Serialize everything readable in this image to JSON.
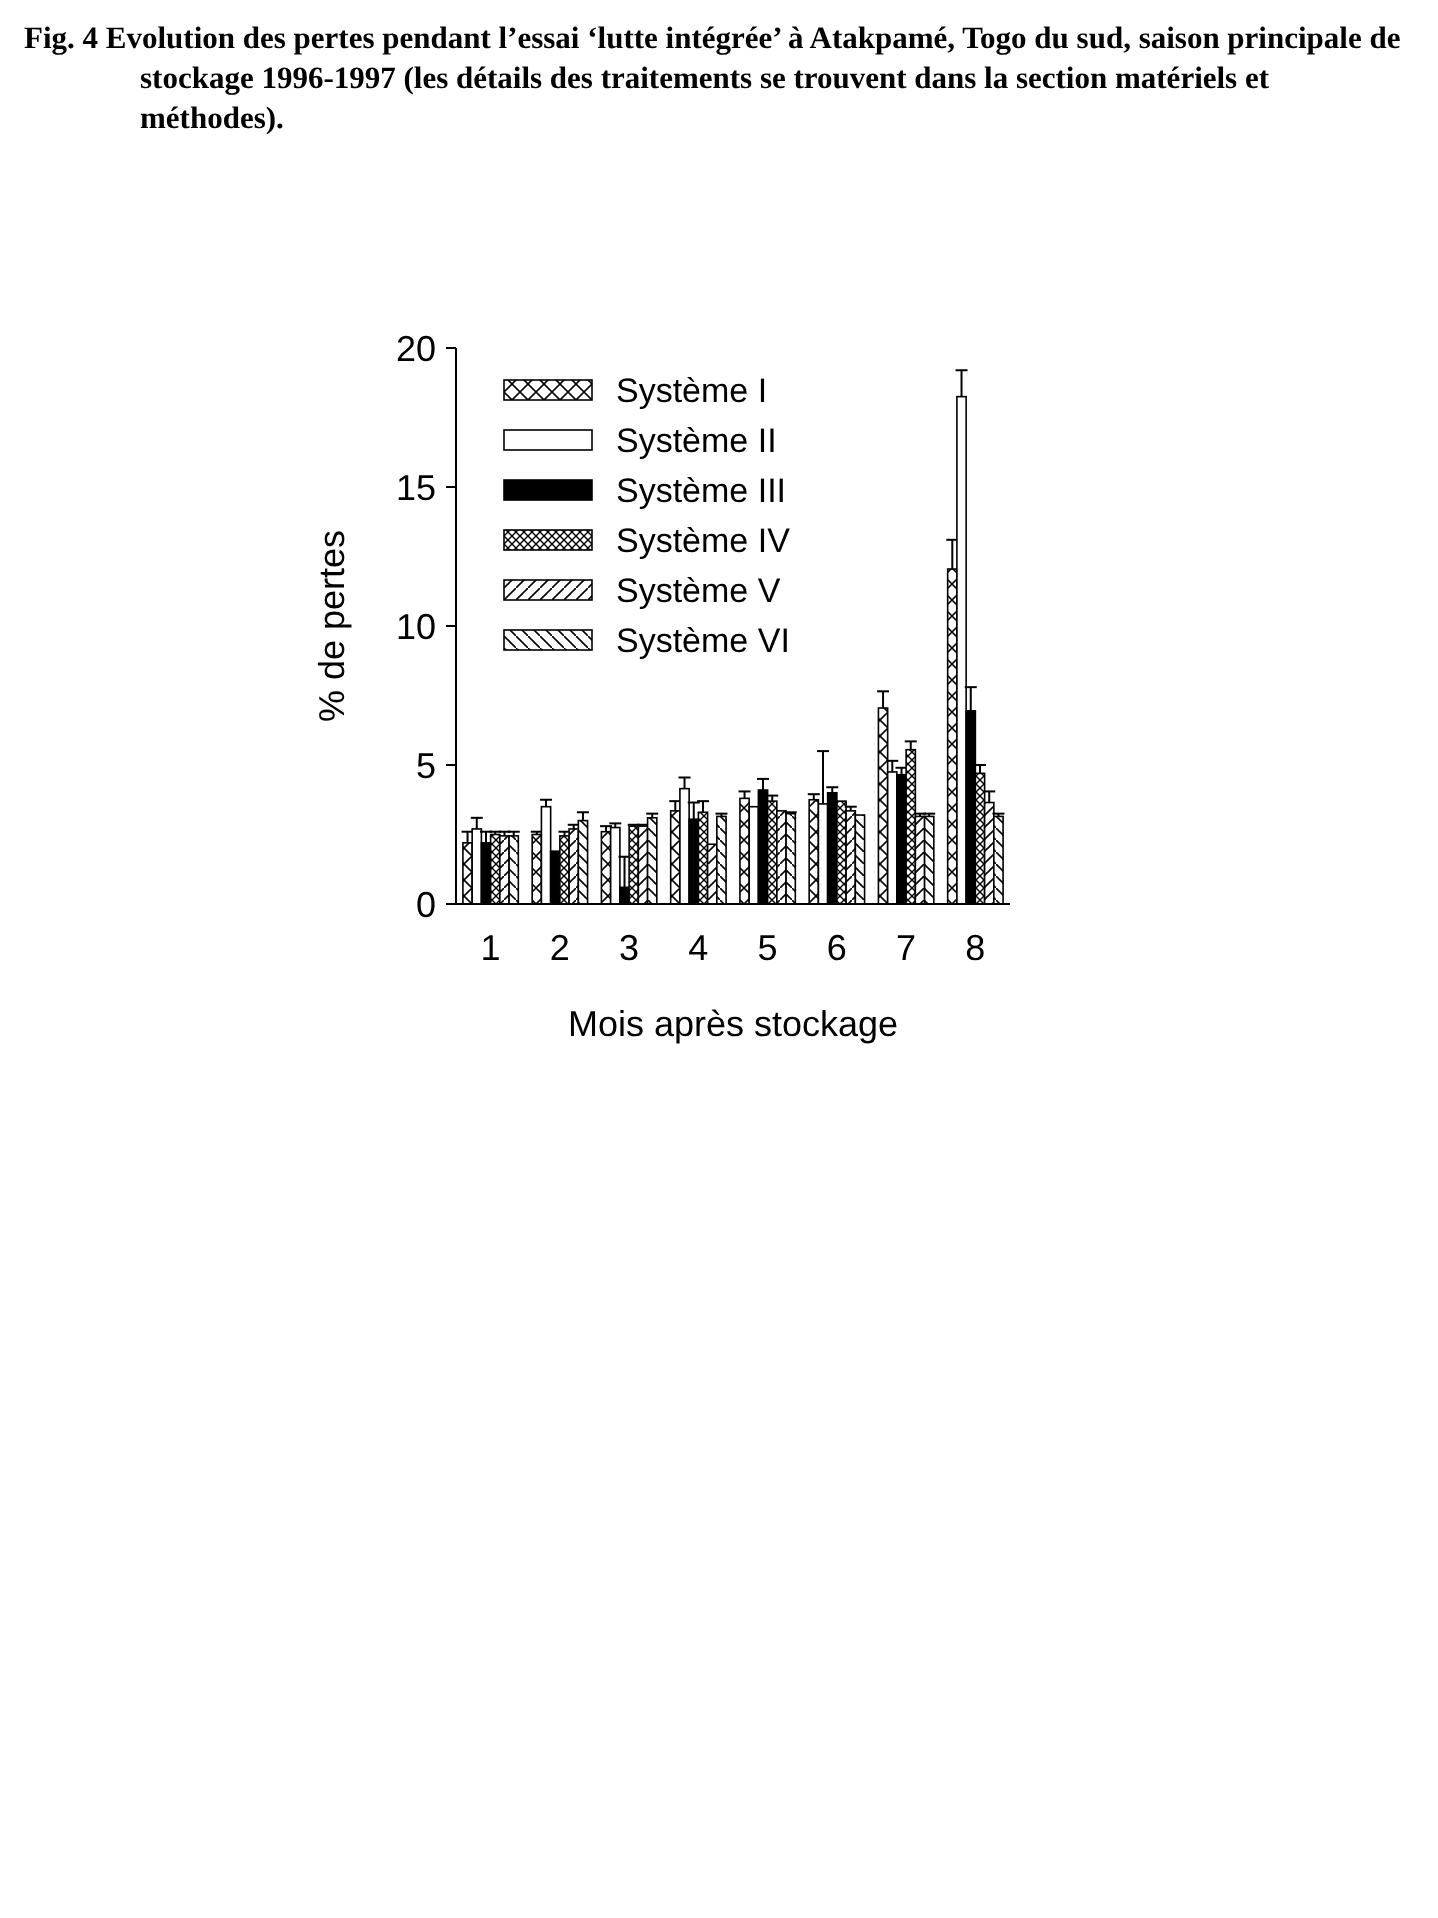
{
  "chart_data": {
    "type": "bar",
    "title": "Fig. 4 Evolution des pertes pendant l’essai ‘lutte intégrée’ à Atakpamé, Togo du sud, saison principale de stockage 1996-1997 (les détails des traitements se trouvent dans la section matériels et méthodes).",
    "xlabel": "Mois après stockage",
    "ylabel": "% de pertes",
    "categories": [
      "1",
      "2",
      "3",
      "4",
      "5",
      "6",
      "7",
      "8"
    ],
    "ylim": [
      0,
      20
    ],
    "yticks": [
      0,
      5,
      10,
      15,
      20
    ],
    "legend": "top left",
    "grid": false,
    "series": [
      {
        "name": "Système I",
        "color": "#ffffff",
        "values": [
          2.2,
          2.5,
          2.6,
          3.35,
          3.8,
          3.75,
          7.05,
          12.05
        ],
        "errors": [
          0.4,
          0.1,
          0.2,
          0.35,
          0.25,
          0.2,
          0.6,
          1.05
        ]
      },
      {
        "name": "Système II",
        "color": "#ffffff",
        "values": [
          2.7,
          3.5,
          2.75,
          4.15,
          3.5,
          3.6,
          4.75,
          18.25
        ],
        "errors": [
          0.4,
          0.25,
          0.15,
          0.4,
          null,
          1.9,
          0.4,
          0.95
        ]
      },
      {
        "name": "Système III",
        "color": "#000000",
        "values": [
          2.2,
          1.9,
          0.6,
          3.05,
          4.1,
          4.0,
          4.65,
          6.95
        ],
        "errors": [
          0.4,
          null,
          1.1,
          0.6,
          0.4,
          0.2,
          0.25,
          0.85
        ]
      },
      {
        "name": "Système IV",
        "color": "#ffffff",
        "values": [
          2.5,
          2.45,
          2.8,
          3.3,
          3.7,
          3.7,
          5.55,
          4.7
        ],
        "errors": [
          0.1,
          0.15,
          0.05,
          0.4,
          0.2,
          null,
          0.3,
          0.3
        ]
      },
      {
        "name": "Système V",
        "color": "#ffffff",
        "values": [
          2.45,
          2.7,
          2.8,
          2.15,
          3.35,
          3.35,
          3.15,
          3.65
        ],
        "errors": [
          0.15,
          0.15,
          0.05,
          null,
          null,
          0.15,
          0.1,
          0.4
        ]
      },
      {
        "name": "Système VI",
        "color": "#ffffff",
        "values": [
          2.45,
          3.0,
          3.1,
          3.15,
          3.25,
          3.2,
          3.15,
          3.15
        ],
        "errors": [
          0.15,
          0.3,
          0.15,
          0.1,
          0.05,
          null,
          0.1,
          0.1
        ]
      }
    ]
  }
}
